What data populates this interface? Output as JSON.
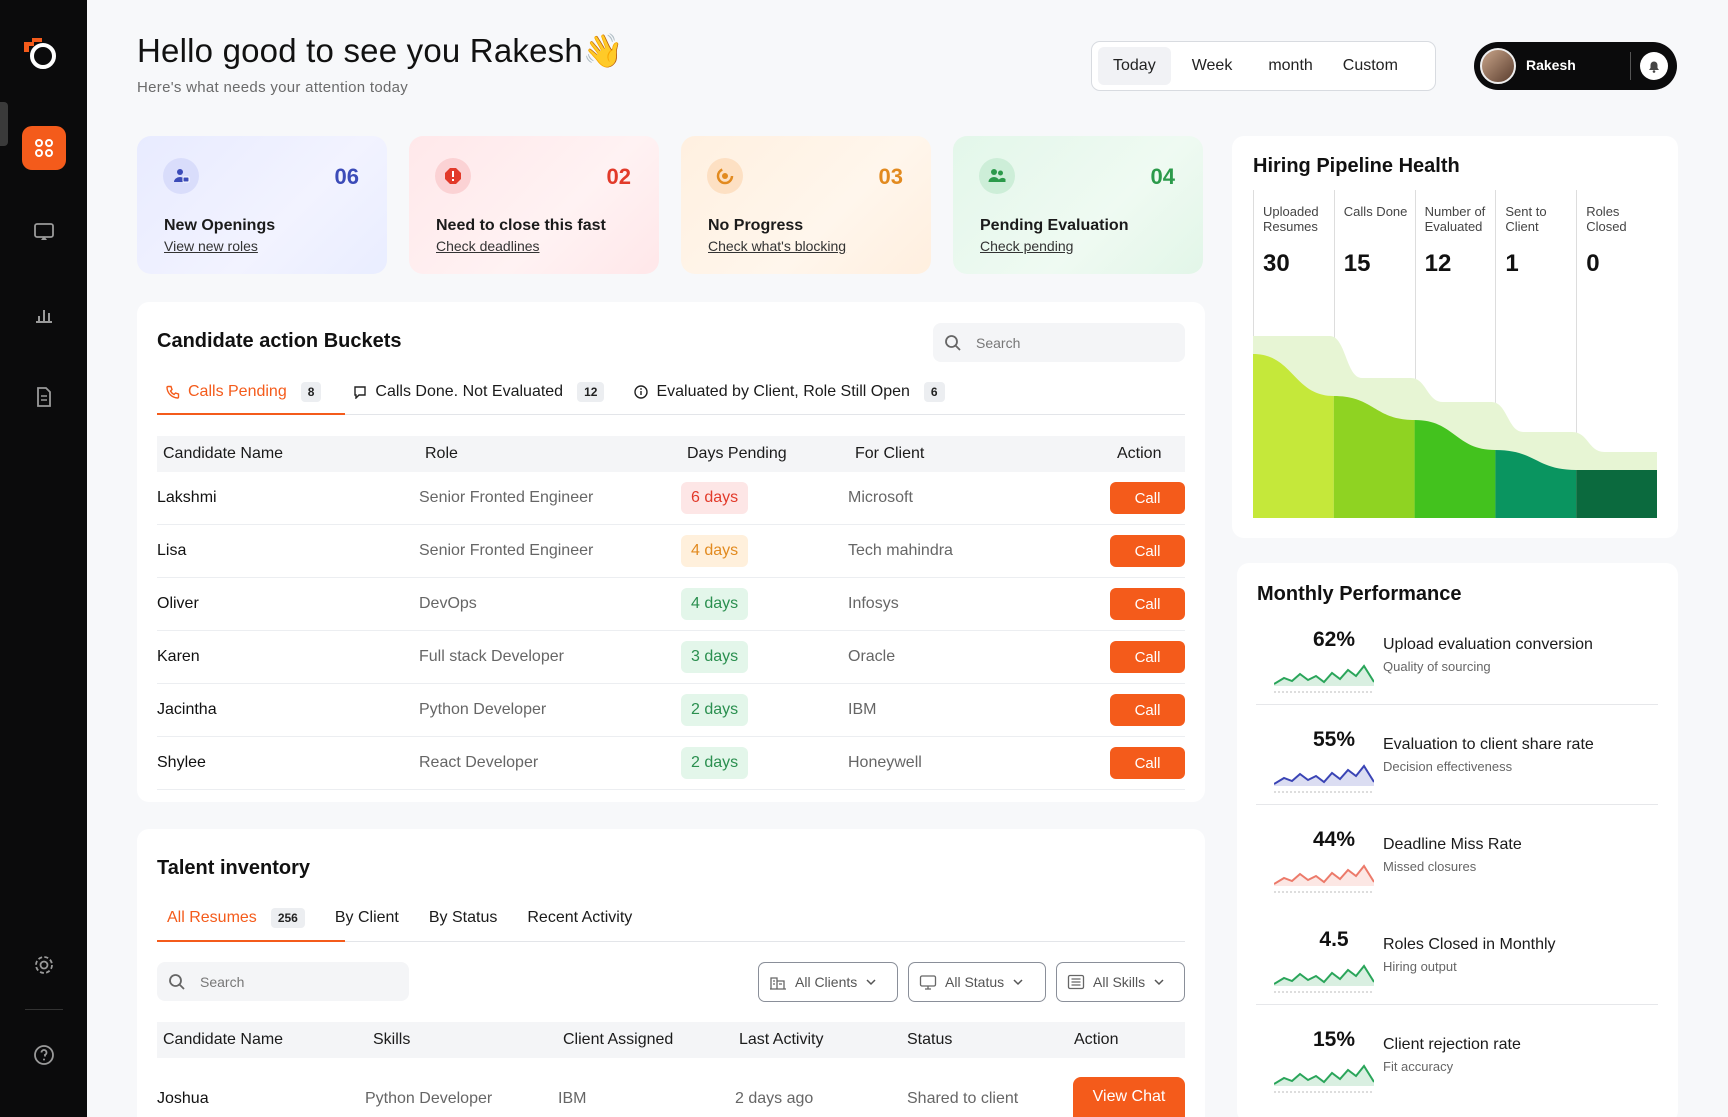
{
  "header": {
    "greeting": "Hello good to see you Rakesh👋",
    "subtitle": "Here's what needs your attention today",
    "range_tabs": [
      "Today",
      "Week",
      "month",
      "Custom"
    ],
    "range_selected": "Today",
    "user_name": "Rakesh"
  },
  "stats": [
    {
      "count": "06",
      "title": "New Openings",
      "link": "View new roles",
      "color": "#3b4bb8"
    },
    {
      "count": "02",
      "title": "Need to close this fast",
      "link": "Check deadlines",
      "color": "#e23a2a"
    },
    {
      "count": "03",
      "title": "No Progress",
      "link": "Check what's blocking",
      "color": "#e28a1f"
    },
    {
      "count": "04",
      "title": "Pending Evaluation",
      "link": "Check pending",
      "color": "#2b9a4a"
    }
  ],
  "buckets": {
    "title": "Candidate action Buckets",
    "search_placeholder": "Search",
    "tabs": [
      {
        "label": "Calls Pending",
        "count": "8"
      },
      {
        "label": "Calls Done. Not Evaluated",
        "count": "12"
      },
      {
        "label": "Evaluated by Client, Role Still Open",
        "count": "6"
      }
    ],
    "columns": [
      "Candidate Name",
      "Role",
      "Days Pending",
      "For Client",
      "Action"
    ],
    "rows": [
      {
        "name": "Lakshmi",
        "role": "Senior Fronted Engineer",
        "days": "6 days",
        "client": "Microsoft",
        "action": "Call",
        "level": "red"
      },
      {
        "name": "Lisa",
        "role": "Senior Fronted Engineer",
        "days": "4 days",
        "client": "Tech mahindra",
        "action": "Call",
        "level": "orange"
      },
      {
        "name": "Oliver",
        "role": "DevOps",
        "days": "4 days",
        "client": "Infosys",
        "action": "Call",
        "level": "green"
      },
      {
        "name": "Karen",
        "role": "Full stack Developer",
        "days": "3 days",
        "client": "Oracle",
        "action": "Call",
        "level": "green"
      },
      {
        "name": "Jacintha",
        "role": "Python Developer",
        "days": "2 days",
        "client": "IBM",
        "action": "Call",
        "level": "green"
      },
      {
        "name": "Shylee",
        "role": "React Developer",
        "days": "2 days",
        "client": "Honeywell",
        "action": "Call",
        "level": "green"
      }
    ]
  },
  "inventory": {
    "title": "Talent inventory",
    "tabs": [
      {
        "label": "All Resumes",
        "count": "256"
      },
      {
        "label": "By Client"
      },
      {
        "label": "By Status"
      },
      {
        "label": "Recent Activity"
      }
    ],
    "search_placeholder": "Search",
    "filters": [
      "All Clients",
      "All Status",
      "All Skills"
    ],
    "columns": [
      "Candidate Name",
      "Skills",
      "Client Assigned",
      "Last Activity",
      "Status",
      "Action"
    ],
    "rows": [
      {
        "name": "Joshua",
        "skills": "Python Developer",
        "client": "IBM",
        "activity": "2 days ago",
        "status": "Shared to client",
        "action": "View Chat"
      }
    ]
  },
  "pipeline": {
    "title": "Hiring Pipeline Health",
    "stages": [
      {
        "label": "Uploaded Resumes",
        "value": 30
      },
      {
        "label": "Calls Done",
        "value": 15
      },
      {
        "label": "Number of Evaluated",
        "value": 12
      },
      {
        "label": "Sent to Client",
        "value": 1
      },
      {
        "label": "Roles Closed",
        "value": 0
      }
    ]
  },
  "monthly": {
    "title": "Monthly Performance",
    "items": [
      {
        "value": "62%",
        "title": "Upload evaluation conversion",
        "subtitle": "Quality of sourcing",
        "color": "#2aa55a"
      },
      {
        "value": "55%",
        "title": "Evaluation to client share rate",
        "subtitle": "Decision effectiveness",
        "color": "#3a44b5"
      },
      {
        "value": "44%",
        "title": "Deadline Miss Rate",
        "subtitle": "Missed closures",
        "color": "#ec7a6a"
      },
      {
        "value": "4.5",
        "title": "Roles Closed in Monthly",
        "subtitle": "Hiring output",
        "color": "#2aa55a"
      },
      {
        "value": "15%",
        "title": "Client rejection rate",
        "subtitle": "Fit accuracy",
        "color": "#2aa55a"
      }
    ]
  }
}
